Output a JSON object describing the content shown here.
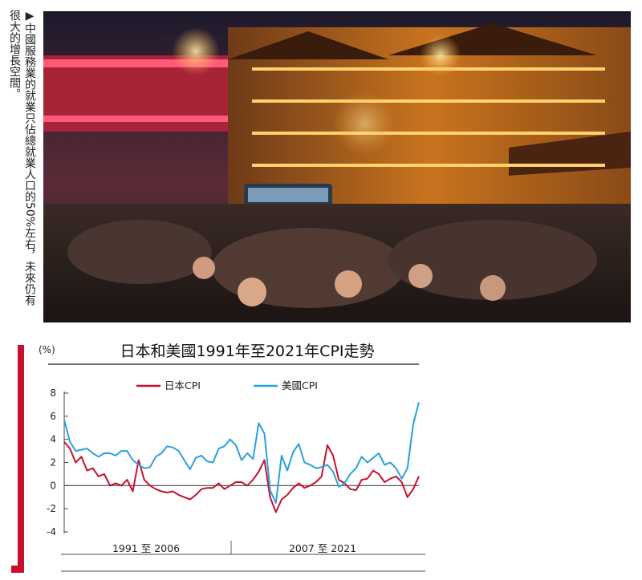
{
  "caption": "▶中國服務業的就業只佔總就業人口的50%左右，未來仍有很大的增長空間。",
  "chart_data": {
    "type": "line",
    "title": "日本和美國1991年至2021年CPI走勢",
    "ylabel": "(%)",
    "ylim": [
      -4,
      8
    ],
    "yticks": [
      8,
      6,
      4,
      2,
      0,
      -2,
      -4
    ],
    "x_range": [
      1991,
      2022
    ],
    "grid": false,
    "legend_position": "top",
    "period_labels": [
      "1991 至 2006",
      "2007 至 2021"
    ],
    "colors": {
      "japan": "#c8102e",
      "us": "#2aa0dc"
    },
    "series": [
      {
        "name": "日本CPI",
        "color": "#c8102e",
        "x": [
          1991.0,
          1991.5,
          1992.0,
          1992.5,
          1993.0,
          1993.5,
          1994.0,
          1994.5,
          1995.0,
          1995.5,
          1996.0,
          1996.5,
          1997.0,
          1997.5,
          1998.0,
          1998.5,
          1999.0,
          1999.5,
          2000.0,
          2000.5,
          2001.0,
          2001.5,
          2002.0,
          2002.5,
          2003.0,
          2003.5,
          2004.0,
          2004.5,
          2005.0,
          2005.5,
          2006.0,
          2006.5,
          2007.0,
          2007.5,
          2008.0,
          2008.5,
          2009.0,
          2009.5,
          2010.0,
          2010.5,
          2011.0,
          2011.5,
          2012.0,
          2012.5,
          2013.0,
          2013.5,
          2014.0,
          2014.5,
          2015.0,
          2015.5,
          2016.0,
          2016.5,
          2017.0,
          2017.5,
          2018.0,
          2018.5,
          2019.0,
          2019.5,
          2020.0,
          2020.5,
          2021.0,
          2021.5,
          2022.0
        ],
        "values": [
          3.8,
          3.2,
          2.0,
          2.5,
          1.3,
          1.5,
          0.8,
          1.0,
          0.0,
          0.2,
          0.0,
          0.5,
          -0.5,
          2.2,
          0.5,
          0.0,
          -0.3,
          -0.5,
          -0.6,
          -0.5,
          -0.8,
          -1.0,
          -1.2,
          -0.8,
          -0.3,
          -0.2,
          -0.2,
          0.2,
          -0.3,
          0.0,
          0.3,
          0.3,
          0.0,
          0.5,
          1.2,
          2.2,
          -1.0,
          -2.3,
          -1.2,
          -0.8,
          -0.2,
          0.2,
          -0.2,
          0.0,
          0.3,
          0.8,
          3.5,
          2.6,
          0.5,
          0.2,
          -0.3,
          -0.4,
          0.5,
          0.6,
          1.3,
          1.0,
          0.3,
          0.6,
          0.8,
          0.3,
          -1.0,
          -0.3,
          0.8
        ]
      },
      {
        "name": "美國CPI",
        "color": "#2aa0dc",
        "x": [
          1991.0,
          1991.5,
          1992.0,
          1992.5,
          1993.0,
          1993.5,
          1994.0,
          1994.5,
          1995.0,
          1995.5,
          1996.0,
          1996.5,
          1997.0,
          1997.5,
          1998.0,
          1998.5,
          1999.0,
          1999.5,
          2000.0,
          2000.5,
          2001.0,
          2001.5,
          2002.0,
          2002.5,
          2003.0,
          2003.5,
          2004.0,
          2004.5,
          2005.0,
          2005.5,
          2006.0,
          2006.5,
          2007.0,
          2007.5,
          2008.0,
          2008.5,
          2009.0,
          2009.5,
          2010.0,
          2010.5,
          2011.0,
          2011.5,
          2012.0,
          2012.5,
          2013.0,
          2013.5,
          2014.0,
          2014.5,
          2015.0,
          2015.5,
          2016.0,
          2016.5,
          2017.0,
          2017.5,
          2018.0,
          2018.5,
          2019.0,
          2019.5,
          2020.0,
          2020.5,
          2021.0,
          2021.5,
          2022.0
        ],
        "values": [
          5.7,
          3.8,
          3.0,
          3.1,
          3.2,
          2.8,
          2.5,
          2.8,
          2.8,
          2.6,
          3.0,
          3.0,
          2.2,
          1.8,
          1.5,
          1.6,
          2.5,
          2.8,
          3.4,
          3.3,
          3.0,
          2.2,
          1.4,
          2.4,
          2.6,
          2.1,
          2.0,
          3.2,
          3.4,
          4.0,
          3.5,
          2.2,
          2.8,
          2.3,
          5.4,
          4.5,
          -0.4,
          -1.5,
          2.6,
          1.3,
          2.9,
          3.6,
          2.0,
          1.8,
          1.5,
          1.6,
          1.8,
          1.2,
          -0.1,
          0.2,
          1.0,
          1.5,
          2.5,
          2.0,
          2.4,
          2.8,
          1.8,
          2.0,
          1.5,
          0.6,
          1.5,
          5.3,
          7.2
        ]
      }
    ]
  }
}
